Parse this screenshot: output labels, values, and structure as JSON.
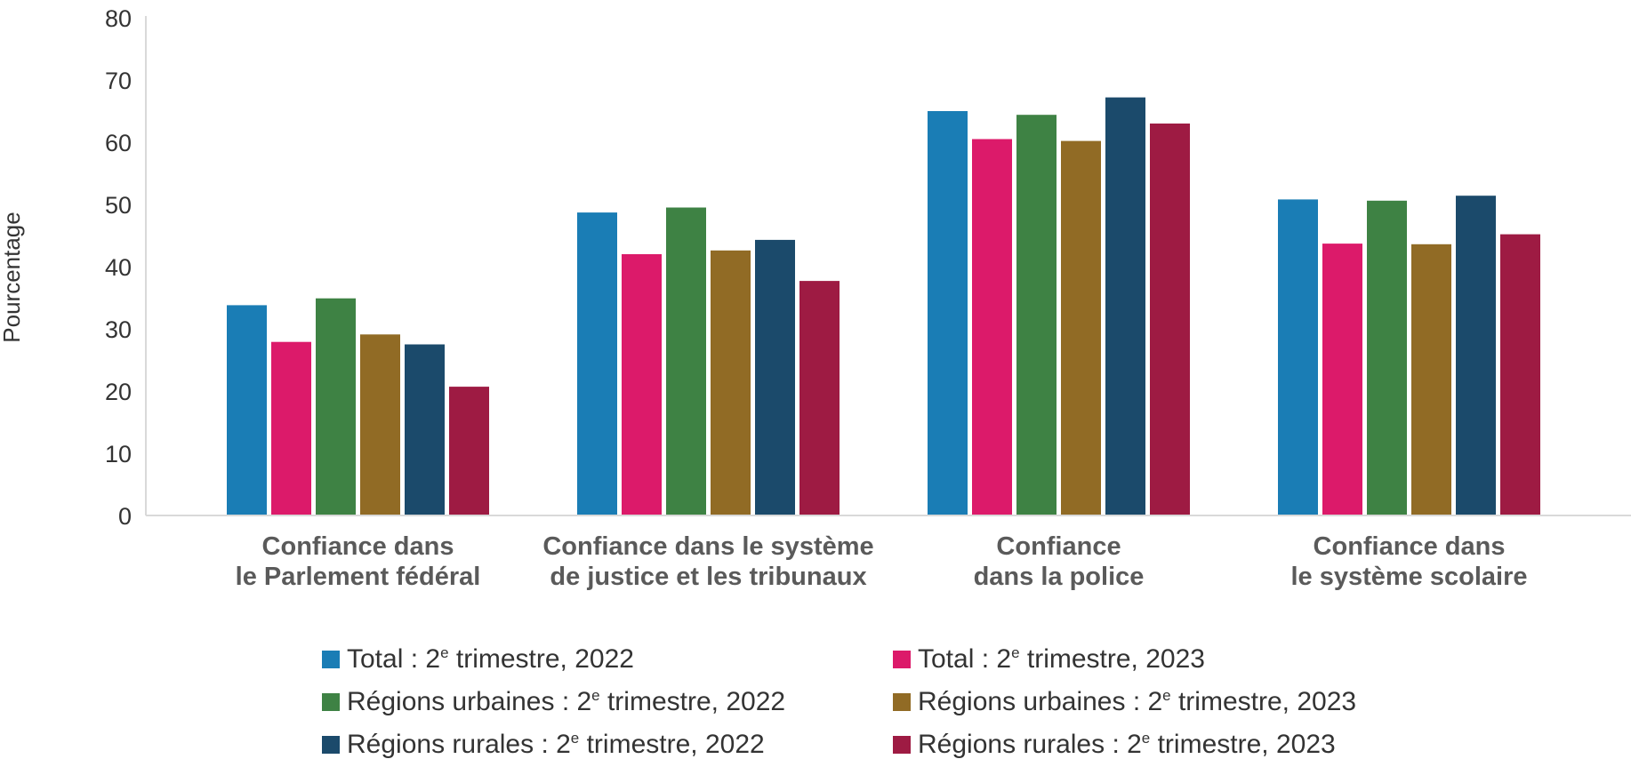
{
  "chart_data": {
    "type": "bar",
    "ylabel": "Pourcentage",
    "ylim": [
      0,
      80
    ],
    "yticks": [
      "0",
      "10",
      "20",
      "30",
      "40",
      "50",
      "60",
      "70",
      "80"
    ],
    "categories": [
      [
        "Confiance dans",
        "le Parlement fédéral"
      ],
      [
        "Confiance dans le système",
        "de justice et les tribunaux"
      ],
      [
        "Confiance",
        "dans la police"
      ],
      [
        "Confiance dans",
        "le système scolaire"
      ]
    ],
    "series": [
      {
        "name": "Total : 2e trimestre, 2022",
        "label_prefix": "Total : 2",
        "label_sup": "e",
        "label_suffix": " trimestre, 2022",
        "color": "#1a7db5",
        "values": [
          33.8,
          48.7,
          65.0,
          50.8
        ]
      },
      {
        "name": "Total : 2e trimestre, 2023",
        "label_prefix": "Total : 2",
        "label_sup": "e",
        "label_suffix": " trimestre, 2023",
        "color": "#dc1a6a",
        "values": [
          27.9,
          42.0,
          60.5,
          43.7
        ]
      },
      {
        "name": "Régions urbaines : 2e trimestre, 2022",
        "label_prefix": "Régions urbaines : 2",
        "label_sup": "e",
        "label_suffix": " trimestre, 2022",
        "color": "#3e8244",
        "values": [
          34.9,
          49.5,
          64.4,
          50.6
        ]
      },
      {
        "name": "Régions urbaines : 2e trimestre, 2023",
        "label_prefix": "Régions urbaines : 2",
        "label_sup": "e",
        "label_suffix": " trimestre, 2023",
        "color": "#916b25",
        "values": [
          29.1,
          42.6,
          60.2,
          43.6
        ]
      },
      {
        "name": "Régions rurales : 2e trimestre, 2022",
        "label_prefix": "Régions rurales : 2",
        "label_sup": "e",
        "label_suffix": " trimestre, 2022",
        "color": "#1b4a6b",
        "values": [
          27.5,
          44.3,
          67.2,
          51.4
        ]
      },
      {
        "name": "Régions rurales : 2e trimestre, 2023",
        "label_prefix": "Régions rurales : 2",
        "label_sup": "e",
        "label_suffix": " trimestre, 2023",
        "color": "#9e1b43",
        "values": [
          20.7,
          37.7,
          63.0,
          45.2
        ]
      }
    ],
    "grid": false,
    "legend_position": "bottom"
  }
}
